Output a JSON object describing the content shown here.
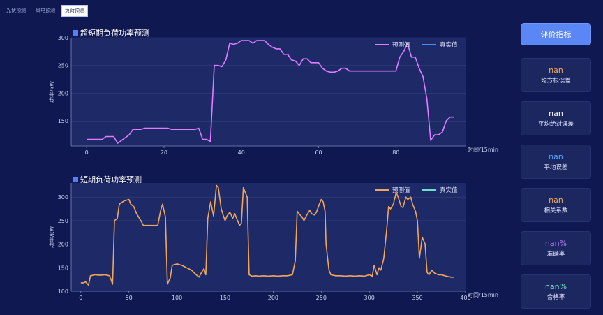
{
  "tabs": [
    {
      "label": "光伏预测",
      "active": false
    },
    {
      "label": "风电预测",
      "active": false
    },
    {
      "label": "负荷预测",
      "active": true
    }
  ],
  "eval_button": "评价指标",
  "metrics": [
    {
      "value": "nan",
      "label": "均方根误差",
      "color": "#f2a65a"
    },
    {
      "value": "nan",
      "label": "平均绝对误差",
      "color": "#ffffff"
    },
    {
      "value": "nan",
      "label": "平均误差",
      "color": "#4aa8ff"
    },
    {
      "value": "nan",
      "label": "相关系数",
      "color": "#f2a65a"
    },
    {
      "value": "nan%",
      "label": "准确率",
      "color": "#b580ff"
    },
    {
      "value": "nan%",
      "label": "合格率",
      "color": "#6fe0c8"
    }
  ],
  "chart_data": [
    {
      "type": "line",
      "title": "超短期负荷功率预测",
      "xlabel": "时间/15min",
      "ylabel": "功率/kW",
      "xlim": [
        -4,
        98
      ],
      "ylim": [
        105,
        300
      ],
      "xticks": [
        0,
        20,
        40,
        60,
        80
      ],
      "yticks": [
        150,
        200,
        250,
        300
      ],
      "legend": "top-right",
      "series": [
        {
          "name": "预测值",
          "color": "#e07cff",
          "values": [
            117,
            117,
            117,
            117,
            117,
            122,
            122,
            122,
            110,
            115,
            120,
            125,
            135,
            135,
            135,
            137,
            137,
            137,
            137,
            137,
            137,
            137,
            135,
            135,
            135,
            135,
            135,
            135,
            135,
            137,
            117,
            117,
            113,
            250,
            250,
            248,
            260,
            290,
            288,
            290,
            295,
            295,
            295,
            290,
            295,
            295,
            295,
            288,
            283,
            280,
            280,
            270,
            270,
            260,
            258,
            250,
            262,
            262,
            255,
            255,
            255,
            245,
            240,
            238,
            238,
            240,
            245,
            245,
            240,
            240,
            240,
            240,
            240,
            240,
            240,
            240,
            240,
            240,
            240,
            240,
            240,
            265,
            275,
            290,
            265,
            265,
            245,
            230,
            190,
            115,
            125,
            125,
            130,
            150,
            157,
            157
          ]
        },
        {
          "name": "真实值",
          "color": "#4b8cff",
          "values": []
        }
      ]
    },
    {
      "type": "line",
      "title": "短期负荷功率预测",
      "xlabel": "时间/15min",
      "ylabel": "功率/kW",
      "xlim": [
        -10,
        400
      ],
      "ylim": [
        100,
        330
      ],
      "xticks": [
        0,
        50,
        100,
        150,
        200,
        250,
        300,
        350,
        400
      ],
      "yticks": [
        100,
        150,
        200,
        250,
        300
      ],
      "legend": "top-right",
      "series": [
        {
          "name": "预测值",
          "color": "#f2a65a",
          "points": [
            [
              0,
              118
            ],
            [
              3,
              118
            ],
            [
              5,
              120
            ],
            [
              8,
              113
            ],
            [
              10,
              133
            ],
            [
              15,
              135
            ],
            [
              20,
              134
            ],
            [
              25,
              135
            ],
            [
              30,
              133
            ],
            [
              33,
              115
            ],
            [
              35,
              250
            ],
            [
              38,
              255
            ],
            [
              40,
              285
            ],
            [
              45,
              292
            ],
            [
              50,
              295
            ],
            [
              52,
              285
            ],
            [
              55,
              280
            ],
            [
              58,
              265
            ],
            [
              60,
              258
            ],
            [
              63,
              248
            ],
            [
              65,
              240
            ],
            [
              70,
              240
            ],
            [
              75,
              240
            ],
            [
              80,
              240
            ],
            [
              83,
              272
            ],
            [
              85,
              285
            ],
            [
              88,
              258
            ],
            [
              90,
              115
            ],
            [
              93,
              128
            ],
            [
              95,
              155
            ],
            [
              100,
              158
            ],
            [
              105,
              155
            ],
            [
              110,
              150
            ],
            [
              115,
              145
            ],
            [
              120,
              135
            ],
            [
              123,
              130
            ],
            [
              125,
              138
            ],
            [
              128,
              148
            ],
            [
              130,
              135
            ],
            [
              132,
              255
            ],
            [
              135,
              290
            ],
            [
              138,
              260
            ],
            [
              141,
              325
            ],
            [
              143,
              320
            ],
            [
              146,
              275
            ],
            [
              148,
              262
            ],
            [
              150,
              250
            ],
            [
              152,
              260
            ],
            [
              155,
              268
            ],
            [
              158,
              255
            ],
            [
              160,
              265
            ],
            [
              163,
              250
            ],
            [
              165,
              240
            ],
            [
              167,
              245
            ],
            [
              169,
              320
            ],
            [
              171,
              310
            ],
            [
              173,
              300
            ],
            [
              175,
              135
            ],
            [
              178,
              132
            ],
            [
              182,
              133
            ],
            [
              185,
              132
            ],
            [
              190,
              133
            ],
            [
              195,
              132
            ],
            [
              200,
              133
            ],
            [
              205,
              132
            ],
            [
              210,
              133
            ],
            [
              215,
              133
            ],
            [
              220,
              135
            ],
            [
              223,
              165
            ],
            [
              225,
              270
            ],
            [
              228,
              262
            ],
            [
              230,
              258
            ],
            [
              232,
              250
            ],
            [
              235,
              262
            ],
            [
              238,
              272
            ],
            [
              240,
              265
            ],
            [
              243,
              262
            ],
            [
              245,
              268
            ],
            [
              248,
              285
            ],
            [
              250,
              295
            ],
            [
              252,
              290
            ],
            [
              254,
              270
            ],
            [
              255,
              200
            ],
            [
              258,
              145
            ],
            [
              260,
              135
            ],
            [
              265,
              133
            ],
            [
              270,
              133
            ],
            [
              275,
              132
            ],
            [
              280,
              133
            ],
            [
              285,
              132
            ],
            [
              290,
              133
            ],
            [
              295,
              132
            ],
            [
              300,
              135
            ],
            [
              303,
              132
            ],
            [
              305,
              155
            ],
            [
              308,
              135
            ],
            [
              310,
              150
            ],
            [
              312,
              145
            ],
            [
              315,
              170
            ],
            [
              318,
              230
            ],
            [
              320,
              280
            ],
            [
              322,
              275
            ],
            [
              325,
              285
            ],
            [
              328,
              310
            ],
            [
              330,
              300
            ],
            [
              333,
              280
            ],
            [
              335,
              278
            ],
            [
              338,
              300
            ],
            [
              340,
              295
            ],
            [
              343,
              300
            ],
            [
              345,
              285
            ],
            [
              348,
              270
            ],
            [
              350,
              250
            ],
            [
              352,
              170
            ],
            [
              355,
              215
            ],
            [
              358,
              200
            ],
            [
              360,
              140
            ],
            [
              362,
              135
            ],
            [
              365,
              145
            ],
            [
              368,
              138
            ],
            [
              372,
              135
            ],
            [
              375,
              135
            ],
            [
              380,
              132
            ],
            [
              385,
              130
            ],
            [
              388,
              130
            ]
          ]
        },
        {
          "name": "真实值",
          "color": "#6fe0c8",
          "points": []
        }
      ]
    }
  ]
}
